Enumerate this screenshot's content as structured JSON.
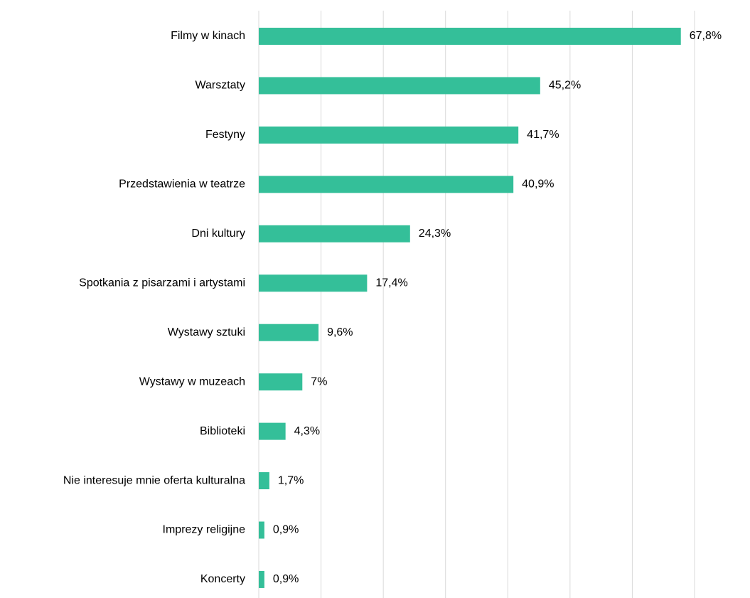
{
  "chart_data": {
    "type": "bar",
    "orientation": "horizontal",
    "categories": [
      "Filmy w kinach",
      "Warsztaty",
      "Festyny",
      "Przedstawienia w teatrze",
      "Dni kultury",
      "Spotkania z pisarzami i artystami",
      "Wystawy sztuki",
      "Wystawy w muzeach",
      "Biblioteki",
      "Nie interesuje mnie oferta kulturalna",
      "Imprezy religijne",
      "Koncerty"
    ],
    "values": [
      67.8,
      45.2,
      41.7,
      40.9,
      24.3,
      17.4,
      9.6,
      7,
      4.3,
      1.7,
      0.9,
      0.9
    ],
    "value_labels": [
      "67,8%",
      "45,2%",
      "41,7%",
      "40,9%",
      "24,3%",
      "17,4%",
      "9,6%",
      "7%",
      "4,3%",
      "1,7%",
      "0,9%",
      "0,9%"
    ],
    "color": "#34bf99",
    "xlim": [
      0,
      70
    ],
    "xticks": [
      0,
      10,
      20,
      30,
      40,
      50,
      60,
      70
    ],
    "grid": true
  }
}
